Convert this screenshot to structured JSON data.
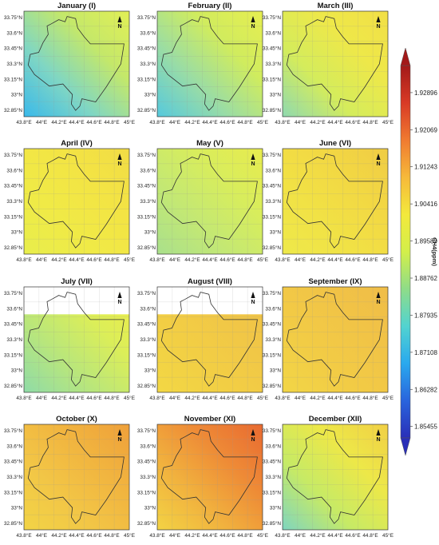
{
  "figure": {
    "colorbar": {
      "label": "CH4(ppm)",
      "ticks": [
        "1.92896",
        "1.92069",
        "1.91243",
        "1.90416",
        "1.89589",
        "1.88762",
        "1.87935",
        "1.87108",
        "1.86282",
        "1.85455"
      ],
      "range": [
        1.852,
        1.935
      ],
      "colors": [
        "#2a2fb8",
        "#2a64dd",
        "#29a9ee",
        "#52d3d0",
        "#8fdc88",
        "#d3ef4a",
        "#f3e93c",
        "#f6b93a",
        "#f07a30",
        "#d83a26",
        "#a31a1a"
      ]
    },
    "x_ticks": [
      "43.8°E",
      "44°E",
      "44.2°E",
      "44.4°E",
      "44.6°E",
      "44.8°E",
      "45°E"
    ],
    "y_ticks": [
      "33.75°N",
      "33.6°N",
      "33.45°N",
      "33.3°N",
      "33.15°N",
      "33°N",
      "32.85°N"
    ],
    "north_label": "N",
    "panels": [
      {
        "title": "January (I)",
        "colors": [
          "#3ab9ea",
          "#7fd6c4",
          "#c4e86a",
          "#e2ef55"
        ]
      },
      {
        "title": "February (II)",
        "colors": [
          "#56c9dd",
          "#98dca7",
          "#d0ec5e",
          "#e7ee50"
        ]
      },
      {
        "title": "March (III)",
        "colors": [
          "#8fd9b0",
          "#d4ec5c",
          "#eee849",
          "#f2df46"
        ]
      },
      {
        "title": "April (IV)",
        "colors": [
          "#e8ee4c",
          "#f0ea46",
          "#f3e444",
          "#f2dc45"
        ]
      },
      {
        "title": "May (V)",
        "colors": [
          "#a9e08c",
          "#c3e874",
          "#d8ed5c",
          "#e8ec4e"
        ]
      },
      {
        "title": "June (VI)",
        "colors": [
          "#eee94a",
          "#f1e245",
          "#f2d843",
          "#f0cc44"
        ]
      },
      {
        "title": "July (VII)",
        "colors": [
          "#8fdba8",
          "#b8e67c",
          "#dcee58",
          "#eeec48"
        ]
      },
      {
        "title": "August (VIII)",
        "colors": [
          "#f3d844",
          "#f2cf44",
          "#f1c746",
          "#f0c247"
        ]
      },
      {
        "title": "September (IX)",
        "colors": [
          "#f2d646",
          "#f2cc45",
          "#f1c446",
          "#f0bd48"
        ]
      },
      {
        "title": "October (X)",
        "colors": [
          "#f2d446",
          "#f2c646",
          "#f1b43f",
          "#efa03a"
        ]
      },
      {
        "title": "November (XI)",
        "colors": [
          "#f3d344",
          "#f1b23e",
          "#ee8a36",
          "#e86a31"
        ]
      },
      {
        "title": "December (XII)",
        "colors": [
          "#7fd5bf",
          "#c6ea66",
          "#ede848",
          "#f1cf45"
        ]
      }
    ]
  }
}
